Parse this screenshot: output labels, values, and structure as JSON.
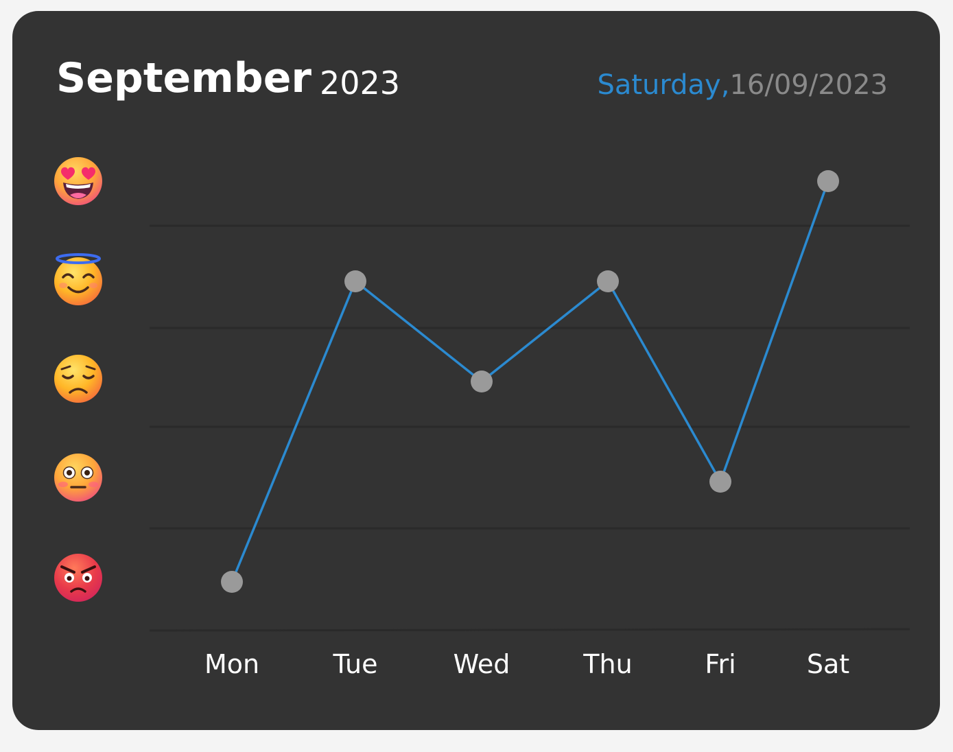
{
  "header": {
    "month": "September",
    "year": "2023",
    "weekday": "Saturday",
    "separator": ",",
    "date": "16/09/2023"
  },
  "colors": {
    "background": "#333333",
    "line": "#2b8ad0",
    "point": "#9a9a9a",
    "grid": "#2a2a2a",
    "weekday": "#2b8ad0",
    "date": "#8a8a8a"
  },
  "mood_scale": [
    {
      "level": 5,
      "icon": "heart-eyes-face-icon"
    },
    {
      "level": 4,
      "icon": "smiling-face-with-halo-icon"
    },
    {
      "level": 3,
      "icon": "pensive-face-icon"
    },
    {
      "level": 2,
      "icon": "flushed-face-icon"
    },
    {
      "level": 1,
      "icon": "angry-face-icon"
    }
  ],
  "chart_data": {
    "type": "line",
    "categories": [
      "Mon",
      "Tue",
      "Wed",
      "Thu",
      "Fri",
      "Sat"
    ],
    "values": [
      1,
      4,
      3,
      4,
      2,
      5
    ],
    "ylim": [
      1,
      5
    ],
    "grid": true
  }
}
